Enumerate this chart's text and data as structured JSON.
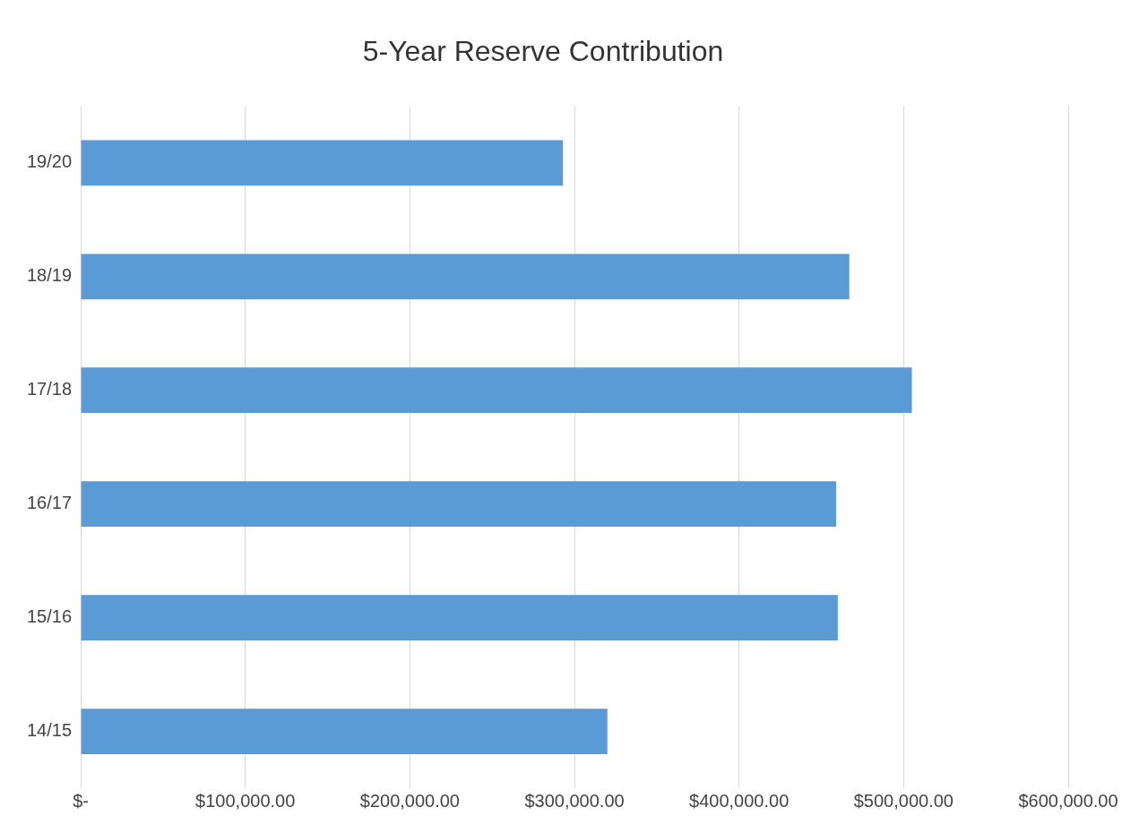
{
  "chart_data": {
    "type": "bar",
    "orientation": "horizontal",
    "title": "5-Year Reserve Contribution",
    "categories": [
      "19/20",
      "18/19",
      "17/18",
      "16/17",
      "15/16",
      "14/15"
    ],
    "values": [
      293000,
      467000,
      505000,
      459000,
      460000,
      320000
    ],
    "color": "#5b9bd5",
    "xlim": [
      0,
      600000
    ],
    "xticks": [
      {
        "value": 0,
        "label": "$-"
      },
      {
        "value": 100000,
        "label": "$100,000.00"
      },
      {
        "value": 200000,
        "label": "$200,000.00"
      },
      {
        "value": 300000,
        "label": "$300,000.00"
      },
      {
        "value": 400000,
        "label": "$400,000.00"
      },
      {
        "value": 500000,
        "label": "$500,000.00"
      },
      {
        "value": 600000,
        "label": "$600,000.00"
      }
    ],
    "grid": "x",
    "legend": false
  }
}
